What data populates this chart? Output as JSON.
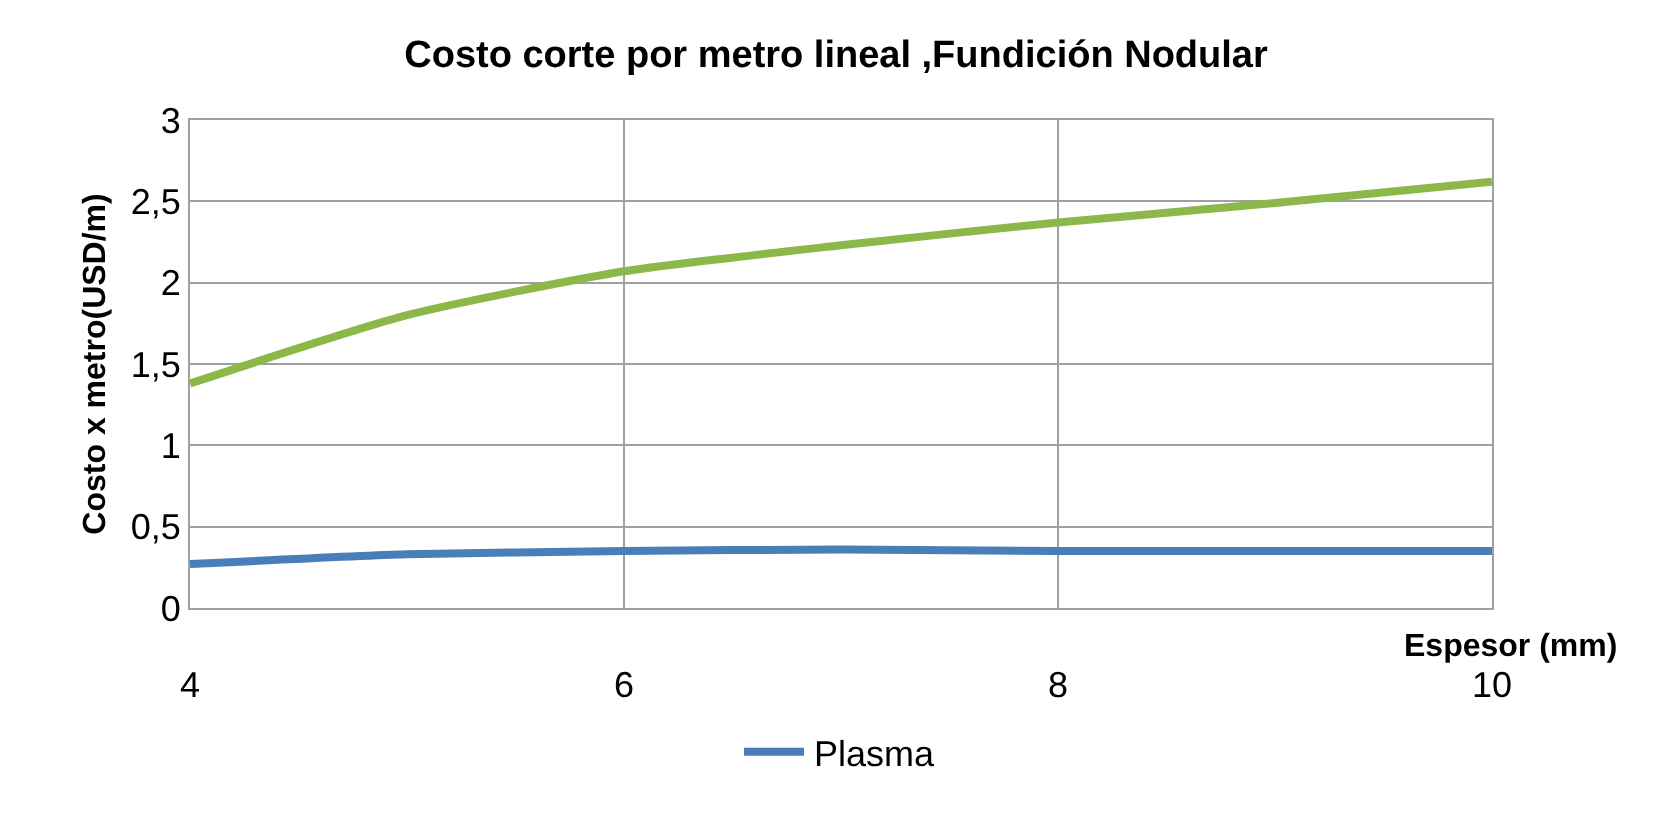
{
  "chart_data": {
    "type": "line",
    "title": "Costo corte por metro lineal ,Fundición Nodular",
    "xlabel": "Espesor (mm)",
    "ylabel": "Costo x metro(USD/m)",
    "x": [
      4,
      5,
      6,
      7,
      8,
      9,
      10
    ],
    "series": [
      {
        "name": "Plasma",
        "color": "#4a7ebb",
        "values": [
          0.27,
          0.33,
          0.35,
          0.36,
          0.35,
          0.35,
          0.35
        ]
      },
      {
        "color": "#8cb84a",
        "values": [
          1.38,
          1.8,
          2.07,
          2.23,
          2.37,
          2.49,
          2.62
        ]
      }
    ],
    "xlim": [
      4,
      10
    ],
    "xticks": [
      4,
      6,
      8,
      10
    ],
    "ylim": [
      0,
      3
    ],
    "yticks": [
      0,
      {
        "value": 0.5,
        "label": "0,5"
      },
      1,
      {
        "value": 1.5,
        "label": "1,5"
      },
      2,
      {
        "value": 2.5,
        "label": "2,5"
      },
      3
    ],
    "grid": true,
    "legend": "bottom",
    "marker": "none",
    "line_style": "solid"
  }
}
